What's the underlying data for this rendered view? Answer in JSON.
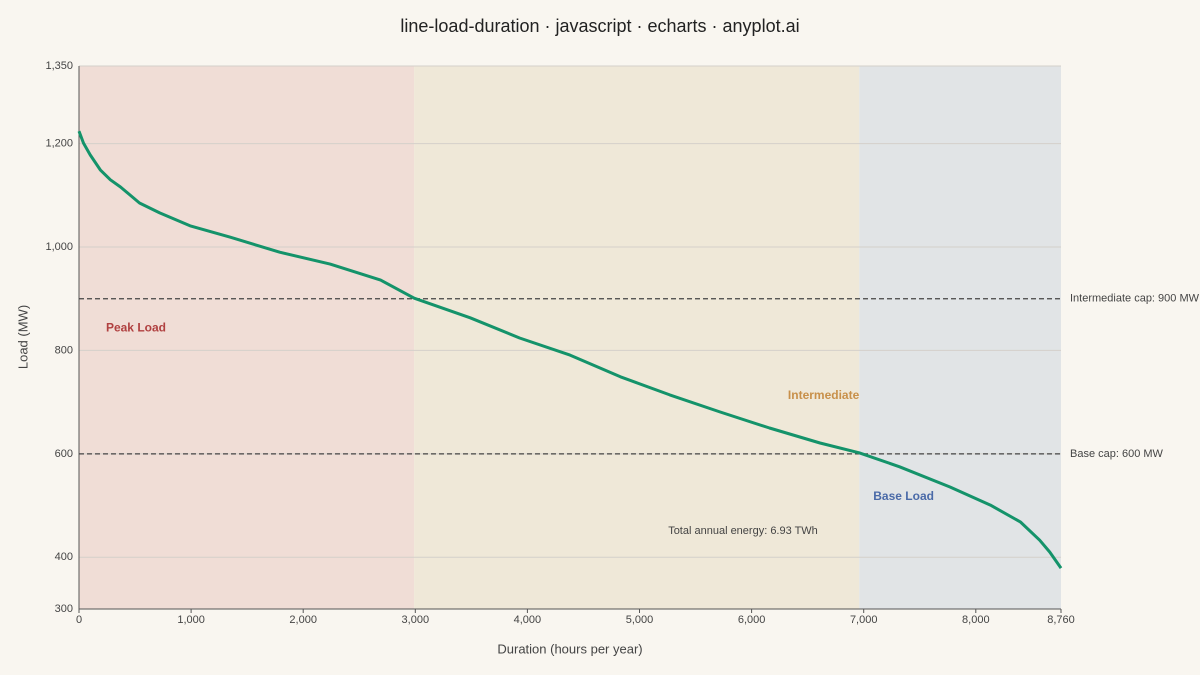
{
  "chart_data": {
    "type": "line",
    "title": "line-load-duration · javascript · echarts · anyplot.ai",
    "x_label": "Duration (hours per year)",
    "y_label": "Load (MW)",
    "x": [
      0,
      40,
      100,
      190,
      280,
      370,
      540,
      720,
      990,
      1350,
      1790,
      2240,
      2690,
      2990,
      3490,
      3930,
      4380,
      4830,
      5270,
      5720,
      6160,
      6610,
      6960,
      7320,
      7770,
      8130,
      8400,
      8570,
      8660,
      8760
    ],
    "values": [
      1224,
      1201,
      1178,
      1149,
      1130,
      1116,
      1085,
      1066,
      1041,
      1019,
      990,
      967,
      936,
      901,
      863,
      824,
      791,
      749,
      714,
      681,
      650,
      621,
      602,
      575,
      536,
      501,
      468,
      433,
      410,
      379
    ],
    "color": "#14936a",
    "xlim": [
      0,
      8760
    ],
    "xticks": [
      0,
      {
        "value": 1000,
        "label": "1,000"
      },
      {
        "value": 2000,
        "label": "2,000"
      },
      {
        "value": 3000,
        "label": "3,000"
      },
      {
        "value": 4000,
        "label": "4,000"
      },
      {
        "value": 5000,
        "label": "5,000"
      },
      {
        "value": 6000,
        "label": "6,000"
      },
      {
        "value": 7000,
        "label": "7,000"
      },
      {
        "value": 8000,
        "label": "8,000"
      },
      {
        "value": 8760,
        "label": "8,760"
      }
    ],
    "ylim": [
      300,
      1350
    ],
    "yticks": [
      300,
      400,
      600,
      800,
      {
        "value": 1000,
        "label": "1,000"
      },
      {
        "value": 1200,
        "label": "1,200"
      },
      {
        "value": 1350,
        "label": "1,350"
      }
    ],
    "grid": true,
    "bands": [
      {
        "label": "Peak Load",
        "start": 0,
        "end": 2990,
        "color": "#f0ddd6",
        "label_color": "#b04040"
      },
      {
        "label": "Intermediate",
        "start": 2990,
        "end": 6960,
        "color": "#efe8d8",
        "label_color": "#c8904a"
      },
      {
        "label": "Base Load",
        "start": 6960,
        "end": 8760,
        "color": "#e1e4e6",
        "label_color": "#4a6aa8"
      }
    ],
    "reference_lines": [
      {
        "value": 900,
        "label": "Intermediate cap: 900 MW"
      },
      {
        "value": 600,
        "label": "Base cap: 600 MW"
      }
    ],
    "annotation": "Total annual energy: 6.93 TWh"
  }
}
